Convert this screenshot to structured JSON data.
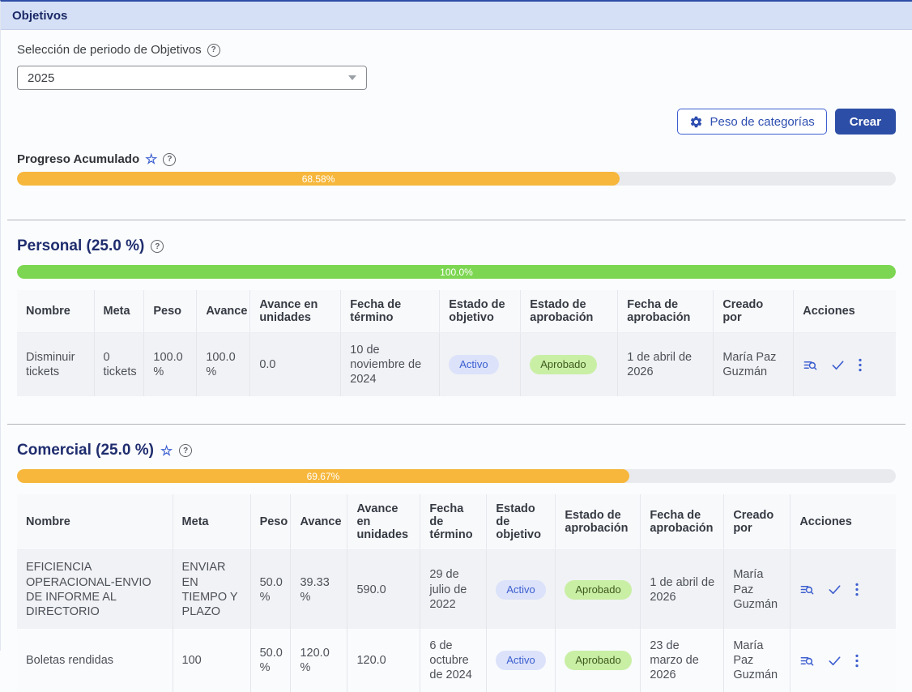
{
  "header": {
    "title": "Objetivos"
  },
  "filters": {
    "period_label": "Selección de periodo de Objetivos",
    "period_value": "2025"
  },
  "toolbar": {
    "weights_button": "Peso de categorías",
    "create_button": "Crear"
  },
  "accumulated_progress": {
    "label": "Progreso Acumulado",
    "percent": 68.58,
    "percent_label": "68.58%"
  },
  "icons": {
    "help": "?",
    "star": "☆"
  },
  "colors": {
    "accent_blue": "#2d4ea6",
    "bar_orange": "#f6b73c",
    "bar_green": "#7cd651",
    "badge_active_bg": "#dbe2fa",
    "badge_active_text": "#3d5fd0",
    "badge_approved_bg": "#c9efa5",
    "title_navy": "#1f2d6e"
  },
  "table_headers": [
    "Nombre",
    "Meta",
    "Peso",
    "Avance",
    "Avance en unidades",
    "Fecha de término",
    "Estado de objetivo",
    "Estado de aprobación",
    "Fecha de aprobación",
    "Creado por",
    "Acciones"
  ],
  "sections": [
    {
      "title": "Personal (25.0 %)",
      "progress": {
        "percent": 100.0,
        "label": "100.0%"
      },
      "rows": [
        {
          "nombre": "Disminuir tickets",
          "meta": "0 tickets",
          "peso": "100.0 %",
          "avance": "100.0 %",
          "avance_en_unidades": "0.0",
          "fecha_termino": "10 de noviembre de 2024",
          "estado_objetivo": "Activo",
          "estado_aprobacion": "Aprobado",
          "fecha_aprobacion": "1 de abril de 2026",
          "creado_por": "María Paz Guzmán"
        }
      ]
    },
    {
      "title": "Comercial (25.0 %)",
      "progress": {
        "percent": 69.67,
        "label": "69.67%"
      },
      "rows": [
        {
          "nombre": "EFICIENCIA OPERACIONAL-ENVIO DE INFORME AL DIRECTORIO",
          "meta": "ENVIAR EN TIEMPO Y PLAZO",
          "peso": "50.0 %",
          "avance": "39.33 %",
          "avance_en_unidades": "590.0",
          "fecha_termino": "29 de julio de 2022",
          "estado_objetivo": "Activo",
          "estado_aprobacion": "Aprobado",
          "fecha_aprobacion": "1 de abril de 2026",
          "creado_por": "María Paz Guzmán"
        },
        {
          "nombre": "Boletas rendidas",
          "meta": "100",
          "peso": "50.0 %",
          "avance": "120.0 %",
          "avance_en_unidades": "120.0",
          "fecha_termino": "6 de octubre de 2024",
          "estado_objetivo": "Activo",
          "estado_aprobacion": "Aprobado",
          "fecha_aprobacion": "23 de marzo de 2026",
          "creado_por": "María Paz Guzmán"
        }
      ]
    }
  ]
}
